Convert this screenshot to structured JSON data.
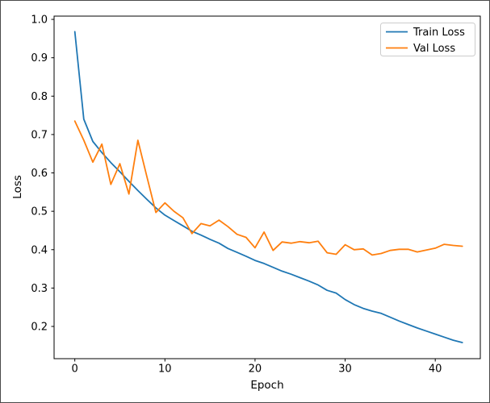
{
  "figure": {
    "background": "#ffffff",
    "border_color": "#4a4a4a"
  },
  "axes": {
    "spine_color": "#000000",
    "tick_color": "#000000",
    "text_color": "#000000"
  },
  "legend": {
    "position": "upper right",
    "edge_color": "#cccccc",
    "face_color": "#ffffff",
    "entries": [
      {
        "label": "Train Loss",
        "color": "#1f77b4"
      },
      {
        "label": "Val Loss",
        "color": "#ff7f0e"
      }
    ]
  },
  "chart_data": {
    "type": "line",
    "title": "",
    "xlabel": "Epoch",
    "ylabel": "Loss",
    "grid": false,
    "xlim": [
      -2.3,
      45.0
    ],
    "ylim": [
      0.116,
      1.0085
    ],
    "xticks": {
      "values": [
        0,
        10,
        20,
        30,
        40
      ],
      "labels": [
        "0",
        "10",
        "20",
        "30",
        "40"
      ]
    },
    "yticks": {
      "values": [
        0.2,
        0.3,
        0.4,
        0.5,
        0.6,
        0.7,
        0.8,
        0.9,
        1.0
      ],
      "labels": [
        "0.2",
        "0.3",
        "0.4",
        "0.5",
        "0.6",
        "0.7",
        "0.8",
        "0.9",
        "1.0"
      ]
    },
    "x": [
      0,
      1,
      2,
      3,
      4,
      5,
      6,
      7,
      8,
      9,
      10,
      11,
      12,
      13,
      14,
      15,
      16,
      17,
      18,
      19,
      20,
      21,
      22,
      23,
      24,
      25,
      26,
      27,
      28,
      29,
      30,
      31,
      32,
      33,
      34,
      35,
      36,
      37,
      38,
      39,
      40,
      41,
      42,
      43
    ],
    "series": [
      {
        "name": "Train Loss",
        "color": "#1f77b4",
        "values": [
          0.968,
          0.74,
          0.682,
          0.653,
          0.627,
          0.603,
          0.578,
          0.554,
          0.531,
          0.509,
          0.49,
          0.476,
          0.462,
          0.448,
          0.438,
          0.427,
          0.417,
          0.403,
          0.393,
          0.383,
          0.372,
          0.364,
          0.354,
          0.344,
          0.336,
          0.327,
          0.318,
          0.308,
          0.294,
          0.287,
          0.27,
          0.257,
          0.247,
          0.24,
          0.234,
          0.224,
          0.214,
          0.205,
          0.196,
          0.188,
          0.18,
          0.172,
          0.164,
          0.158
        ]
      },
      {
        "name": "Val Loss",
        "color": "#ff7f0e",
        "values": [
          0.735,
          0.685,
          0.628,
          0.675,
          0.57,
          0.624,
          0.545,
          0.685,
          0.59,
          0.497,
          0.522,
          0.5,
          0.483,
          0.442,
          0.468,
          0.462,
          0.477,
          0.46,
          0.44,
          0.432,
          0.405,
          0.446,
          0.398,
          0.42,
          0.417,
          0.421,
          0.418,
          0.422,
          0.392,
          0.388,
          0.413,
          0.4,
          0.402,
          0.386,
          0.39,
          0.398,
          0.401,
          0.401,
          0.394,
          0.399,
          0.404,
          0.414,
          0.411,
          0.409
        ]
      }
    ]
  }
}
